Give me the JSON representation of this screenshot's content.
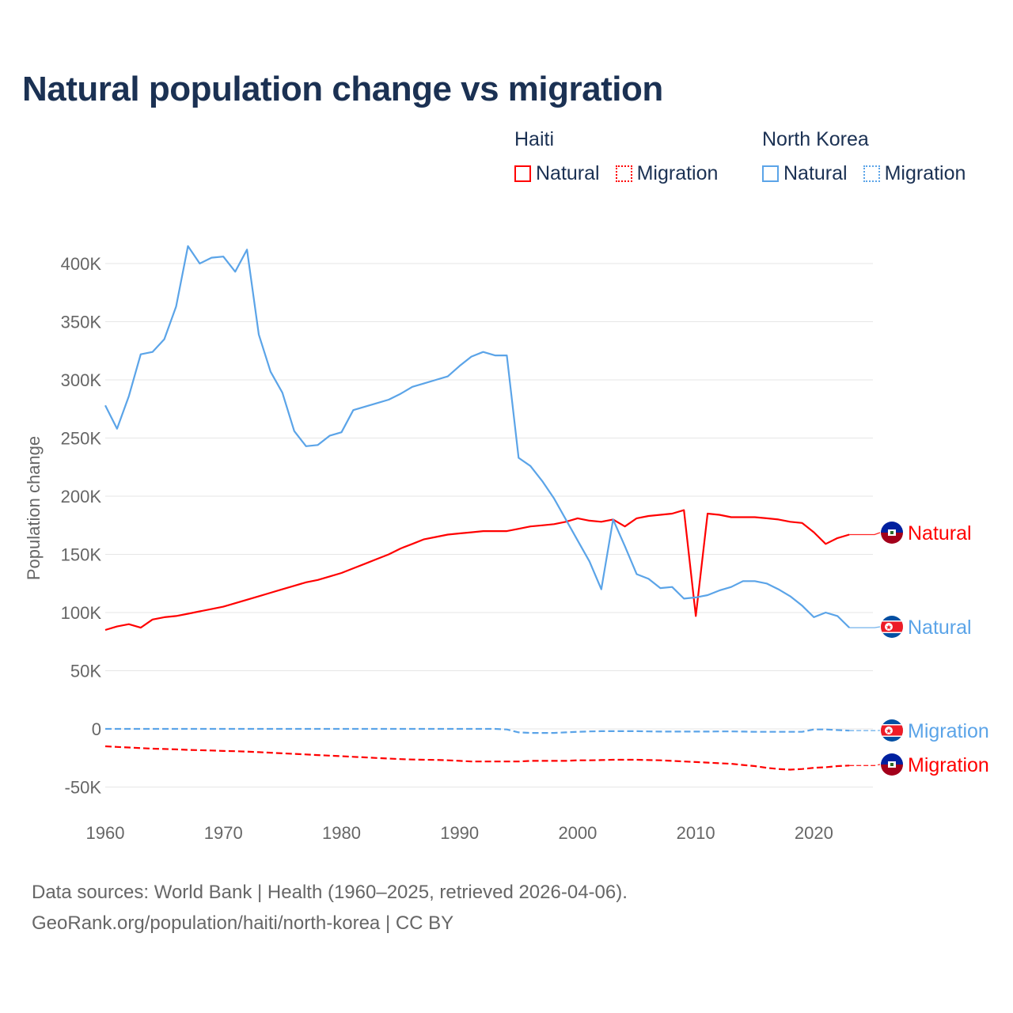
{
  "title": "Natural population change vs migration",
  "legend": {
    "groups": [
      {
        "name": "Haiti",
        "items": [
          {
            "label": "Natural",
            "style": "solid",
            "color": "#ff0000"
          },
          {
            "label": "Migration",
            "style": "dotted",
            "color": "#ff0000"
          }
        ]
      },
      {
        "name": "North Korea",
        "items": [
          {
            "label": "Natural",
            "style": "solid",
            "color": "#5ba4e8"
          },
          {
            "label": "Migration",
            "style": "dotted",
            "color": "#5ba4e8"
          }
        ]
      }
    ]
  },
  "footer": {
    "line1": "Data sources: World Bank | Health (1960–2025, retrieved 2026-04-06).",
    "line2": "GeoRank.org/population/haiti/north-korea | CC BY"
  },
  "chart_data": {
    "type": "line",
    "title": "Natural population change vs migration",
    "xlabel": "",
    "ylabel": "Population change",
    "xlim": [
      1960,
      2025
    ],
    "ylim": [
      -50000,
      400000
    ],
    "x_ticks": [
      1960,
      1970,
      1980,
      1990,
      2000,
      2010,
      2020
    ],
    "y_ticks": [
      -50000,
      0,
      50000,
      100000,
      150000,
      200000,
      250000,
      300000,
      350000,
      400000
    ],
    "y_tick_labels": [
      "-50K",
      "0",
      "50K",
      "100K",
      "150K",
      "200K",
      "250K",
      "300K",
      "350K",
      "400K"
    ],
    "grid": true,
    "x_start": 1960,
    "series": [
      {
        "name": "Haiti Natural",
        "country": "Haiti",
        "end_label": "Natural",
        "color": "#ff0000",
        "dash": "solid",
        "values": [
          85000,
          88000,
          90000,
          87000,
          94000,
          96000,
          97000,
          99000,
          101000,
          103000,
          105000,
          108000,
          111000,
          114000,
          117000,
          120000,
          123000,
          126000,
          128000,
          131000,
          134000,
          138000,
          142000,
          146000,
          150000,
          155000,
          159000,
          163000,
          165000,
          167000,
          168000,
          169000,
          170000,
          170000,
          170000,
          172000,
          174000,
          175000,
          176000,
          178000,
          181000,
          179000,
          178000,
          180000,
          174000,
          181000,
          183000,
          184000,
          185000,
          188000,
          97000,
          185000,
          184000,
          182000,
          182000,
          182000,
          181000,
          180000,
          178000,
          177000,
          169000,
          159000,
          164000,
          167000
        ]
      },
      {
        "name": "Haiti Migration",
        "country": "Haiti",
        "end_label": "Migration",
        "color": "#ff0000",
        "dash": "dashed",
        "values": [
          -15000,
          -15500,
          -16000,
          -16500,
          -17000,
          -17300,
          -17600,
          -18000,
          -18300,
          -18600,
          -19000,
          -19200,
          -19500,
          -20000,
          -20500,
          -21000,
          -21500,
          -22000,
          -22500,
          -23000,
          -23500,
          -24000,
          -24500,
          -25000,
          -25500,
          -26000,
          -26300,
          -26500,
          -26700,
          -27000,
          -27500,
          -28000,
          -28000,
          -28000,
          -28000,
          -28000,
          -27500,
          -27500,
          -27500,
          -27500,
          -27000,
          -27000,
          -26800,
          -26500,
          -26500,
          -26500,
          -26800,
          -27000,
          -27500,
          -28000,
          -28500,
          -29000,
          -29500,
          -30000,
          -31000,
          -32000,
          -33500,
          -34500,
          -35000,
          -34500,
          -33500,
          -33000,
          -32000,
          -31500
        ]
      },
      {
        "name": "North Korea Natural",
        "country": "North Korea",
        "end_label": "Natural",
        "color": "#5ba4e8",
        "dash": "solid",
        "values": [
          278000,
          258000,
          286000,
          322000,
          324000,
          335000,
          363000,
          415000,
          400000,
          405000,
          406000,
          393000,
          412000,
          339000,
          307000,
          289000,
          256000,
          243000,
          244000,
          252000,
          255000,
          274000,
          277000,
          280000,
          283000,
          288000,
          294000,
          297000,
          300000,
          303000,
          312000,
          320000,
          324000,
          321000,
          321000,
          233000,
          226000,
          213000,
          198000,
          180000,
          162000,
          144000,
          120000,
          180000,
          157000,
          133000,
          129000,
          121000,
          122000,
          112000,
          113000,
          115000,
          119000,
          122000,
          127000,
          127000,
          125000,
          120000,
          114000,
          106000,
          96000,
          100000,
          97000,
          87000
        ]
      },
      {
        "name": "North Korea Migration",
        "country": "North Korea",
        "end_label": "Migration",
        "color": "#5ba4e8",
        "dash": "dashed",
        "values": [
          0,
          0,
          0,
          0,
          0,
          0,
          0,
          0,
          0,
          0,
          0,
          0,
          0,
          0,
          0,
          0,
          0,
          0,
          0,
          0,
          0,
          0,
          0,
          0,
          0,
          0,
          0,
          0,
          0,
          0,
          0,
          0,
          0,
          0,
          -500,
          -3000,
          -3500,
          -3500,
          -3500,
          -3000,
          -2500,
          -2200,
          -2000,
          -2000,
          -2000,
          -2000,
          -2200,
          -2300,
          -2300,
          -2300,
          -2300,
          -2300,
          -2200,
          -2200,
          -2300,
          -2500,
          -2500,
          -2500,
          -2500,
          -2500,
          -500,
          -500,
          -1000,
          -1500
        ]
      }
    ]
  }
}
